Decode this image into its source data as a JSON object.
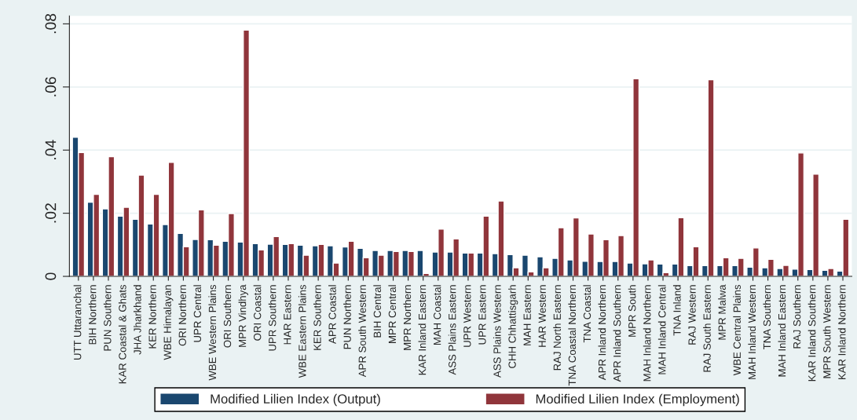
{
  "chart_data": {
    "type": "bar",
    "categories": [
      "UTT Uttaranchal",
      "BIH Northern",
      "PUN Southern",
      "KAR Coastal & Ghats",
      "JHA Jharkhand",
      "KER Northern",
      "WBE Himalayan",
      "ORI Northern",
      "UPR Central",
      "WBE Western Plains",
      "ORI Southern",
      "MPR Vindhya",
      "ORI Coastal",
      "UPR Southern",
      "HAR Eastern",
      "WBE Eastern Plains",
      "KER Southern",
      "APR Coastal",
      "PUN Northern",
      "APR South Western",
      "BIH Central",
      "MPR Central",
      "MPR Northern",
      "KAR Inland Eastern",
      "MAH Coastal",
      "ASS Plains Eastern",
      "UPR Western",
      "UPR Eastern",
      "ASS Plains Western",
      "CHH Chhattisgarh",
      "MAH Eastern",
      "HAR Western",
      "RAJ North Eastern",
      "TNA Coastal Northern",
      "TNA Coastal",
      "APR Inland Northern",
      "APR Inland Southern",
      "MPR South",
      "MAH Inland Northern",
      "MAH Inland Central",
      "TNA Inland",
      "RAJ Western",
      "RAJ South Eastern",
      "MPR Malwa",
      "WBE Central Plains",
      "MAH Inland Western",
      "TNA Southern",
      "MAH Inland Eastern",
      "RAJ Southern",
      "KAR Inland Southern",
      "MPR South Western",
      "KAR Inland Northern"
    ],
    "series": [
      {
        "name": "Modified Lilien Index (Output)",
        "color": "#1a476f",
        "values": [
          0.0441,
          0.0235,
          0.0214,
          0.0191,
          0.0181,
          0.0166,
          0.0164,
          0.0136,
          0.0117,
          0.0116,
          0.0111,
          0.0109,
          0.0104,
          0.0102,
          0.0101,
          0.0099,
          0.0097,
          0.0097,
          0.0093,
          0.0089,
          0.0082,
          0.0082,
          0.0082,
          0.0082,
          0.0077,
          0.0077,
          0.0074,
          0.0074,
          0.0072,
          0.0069,
          0.0067,
          0.0062,
          0.0057,
          0.0052,
          0.0048,
          0.0047,
          0.0047,
          0.0042,
          0.004,
          0.0039,
          0.0039,
          0.0034,
          0.0034,
          0.0034,
          0.0034,
          0.0029,
          0.0027,
          0.0025,
          0.0023,
          0.0022,
          0.0019,
          0.0017
        ]
      },
      {
        "name": "Modified Lilien Index (Employment)",
        "color": "#90353b",
        "values": [
          0.0392,
          0.026,
          0.0379,
          0.0219,
          0.0321,
          0.026,
          0.0361,
          0.0094,
          0.0211,
          0.0099,
          0.0199,
          0.078,
          0.0084,
          0.0126,
          0.0104,
          0.0067,
          0.0101,
          0.0042,
          0.0111,
          0.0059,
          0.0067,
          0.0079,
          0.0079,
          0.0009,
          0.015,
          0.0119,
          0.0074,
          0.0191,
          0.0239,
          0.0027,
          0.0014,
          0.0027,
          0.0154,
          0.0185,
          0.0134,
          0.0116,
          0.0129,
          0.0626,
          0.0052,
          0.0012,
          0.0186,
          0.0094,
          0.0623,
          0.0059,
          0.0057,
          0.009,
          0.0054,
          0.0035,
          0.0391,
          0.0324,
          0.0025,
          0.0181
        ]
      }
    ],
    "ylim": [
      0,
      0.0825
    ],
    "yticks": [
      0,
      {
        "value": 0.02,
        "label": ".02"
      },
      {
        "value": 0.04,
        "label": ".04"
      },
      {
        "value": 0.06,
        "label": ".06"
      },
      {
        "value": 0.08,
        "label": ".08"
      }
    ],
    "grid": "y",
    "legend": "bottom"
  }
}
